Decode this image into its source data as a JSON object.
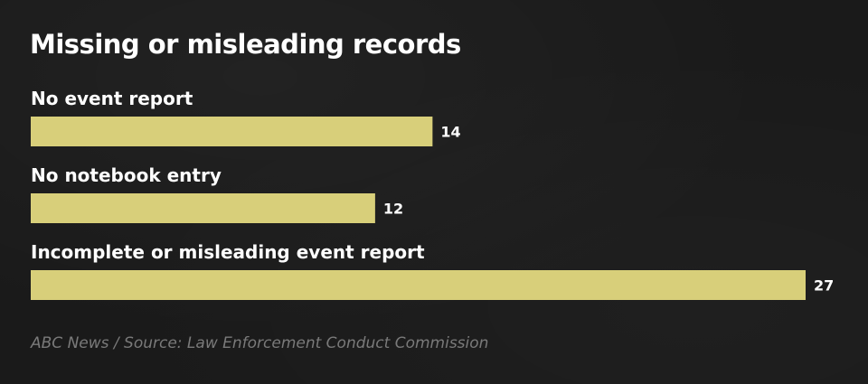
{
  "chart_data": {
    "type": "bar",
    "orientation": "horizontal",
    "title": "Missing or misleading records",
    "categories": [
      "No event report",
      "No notebook entry",
      "Incomplete or misleading event report"
    ],
    "values": [
      14,
      12,
      27
    ],
    "value_labels": [
      "14",
      "12",
      "27"
    ],
    "xlim": [
      0,
      27
    ],
    "grid": false,
    "legend": "none",
    "bar_color": "#d8cf7a",
    "source": "ABC News / Source: Law Enforcement Conduct Commission"
  }
}
